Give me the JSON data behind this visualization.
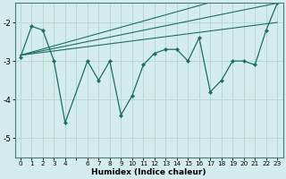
{
  "xlabel": "Humidex (Indice chaleur)",
  "background_color": "#d4edec",
  "grid_color": "#b8d8d4",
  "line_color": "#1a6e64",
  "xlim": [
    -0.5,
    23.5
  ],
  "ylim": [
    -5.5,
    -1.5
  ],
  "yticks": [
    -5,
    -4,
    -3,
    -2
  ],
  "xtick_vals": [
    0,
    1,
    2,
    3,
    4,
    5,
    6,
    7,
    8,
    9,
    10,
    11,
    12,
    13,
    14,
    15,
    16,
    17,
    18,
    19,
    20,
    21,
    22,
    23
  ],
  "xtick_labels": [
    "0",
    "1",
    "2",
    "3",
    "4",
    "",
    "6",
    "7",
    "8",
    "9",
    "10",
    "11",
    "12",
    "13",
    "14",
    "15",
    "16",
    "17",
    "18",
    "19",
    "20",
    "21",
    "22",
    "23"
  ],
  "main_series": [
    [
      0,
      -2.9
    ],
    [
      1,
      -2.1
    ],
    [
      2,
      -2.2
    ],
    [
      3,
      -3.0
    ],
    [
      4,
      -4.6
    ],
    [
      6,
      -3.0
    ],
    [
      7,
      -3.5
    ],
    [
      8,
      -3.0
    ],
    [
      9,
      -4.4
    ],
    [
      10,
      -3.9
    ],
    [
      11,
      -3.1
    ],
    [
      12,
      -2.8
    ],
    [
      13,
      -2.7
    ],
    [
      14,
      -2.7
    ],
    [
      15,
      -3.0
    ],
    [
      16,
      -2.4
    ],
    [
      17,
      -3.8
    ],
    [
      18,
      -3.5
    ],
    [
      19,
      -3.0
    ],
    [
      20,
      -3.0
    ],
    [
      21,
      -3.1
    ],
    [
      22,
      -2.2
    ],
    [
      23,
      -1.5
    ]
  ],
  "trend_lines": [
    [
      [
        0,
        -2.85
      ],
      [
        23,
        -1.0
      ]
    ],
    [
      [
        0,
        -2.85
      ],
      [
        23,
        -1.5
      ]
    ],
    [
      [
        0,
        -2.85
      ],
      [
        23,
        -2.0
      ]
    ]
  ]
}
